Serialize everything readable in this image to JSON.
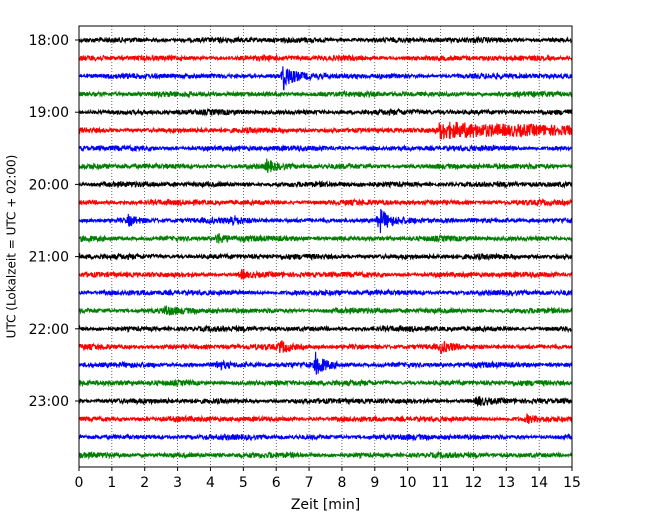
{
  "chart_data": {
    "type": "line",
    "title": "",
    "xlabel": "Zeit  [min]",
    "ylabel": "UTC (Lokalzeit = UTC + 02:00)",
    "xlim": [
      0,
      15
    ],
    "x_ticks": [
      "0",
      "1",
      "2",
      "3",
      "4",
      "5",
      "6",
      "7",
      "8",
      "9",
      "10",
      "11",
      "12",
      "13",
      "14",
      "15"
    ],
    "y_tick_labels": [
      "18:00",
      "19:00",
      "20:00",
      "21:00",
      "22:00",
      "23:00"
    ],
    "grid": "vertical dotted",
    "legend": "none",
    "trace_colors": [
      "#000000",
      "#ff0000",
      "#0000ff",
      "#008000"
    ],
    "traces": [
      {
        "start": "18:00",
        "color": "#000000"
      },
      {
        "start": "18:15",
        "color": "#ff0000"
      },
      {
        "start": "18:30",
        "color": "#0000ff",
        "events": [
          {
            "minute": 6.2,
            "amplitude": 1.0
          }
        ]
      },
      {
        "start": "18:45",
        "color": "#008000"
      },
      {
        "start": "19:00",
        "color": "#000000"
      },
      {
        "start": "19:15",
        "color": "#ff0000",
        "events": [
          {
            "minute": 11.0,
            "amplitude": 0.9,
            "sustained": true
          }
        ]
      },
      {
        "start": "19:30",
        "color": "#0000ff"
      },
      {
        "start": "19:45",
        "color": "#008000",
        "events": [
          {
            "minute": 5.7,
            "amplitude": 0.4
          }
        ]
      },
      {
        "start": "20:00",
        "color": "#000000"
      },
      {
        "start": "20:15",
        "color": "#ff0000"
      },
      {
        "start": "20:30",
        "color": "#0000ff",
        "events": [
          {
            "minute": 9.1,
            "amplitude": 1.0
          },
          {
            "minute": 1.5,
            "amplitude": 0.35
          },
          {
            "minute": 4.6,
            "amplitude": 0.35
          }
        ]
      },
      {
        "start": "20:45",
        "color": "#008000",
        "events": [
          {
            "minute": 4.2,
            "amplitude": 0.35
          }
        ]
      },
      {
        "start": "21:00",
        "color": "#000000"
      },
      {
        "start": "21:15",
        "color": "#ff0000",
        "events": [
          {
            "minute": 4.9,
            "amplitude": 0.3
          }
        ]
      },
      {
        "start": "21:30",
        "color": "#0000ff"
      },
      {
        "start": "21:45",
        "color": "#008000",
        "events": [
          {
            "minute": 2.6,
            "amplitude": 0.3
          }
        ]
      },
      {
        "start": "22:00",
        "color": "#000000"
      },
      {
        "start": "22:15",
        "color": "#ff0000",
        "events": [
          {
            "minute": 6.1,
            "amplitude": 0.4
          },
          {
            "minute": 11.0,
            "amplitude": 0.35
          }
        ]
      },
      {
        "start": "22:30",
        "color": "#0000ff",
        "events": [
          {
            "minute": 7.2,
            "amplitude": 0.75
          },
          {
            "minute": 4.2,
            "amplitude": 0.3
          }
        ]
      },
      {
        "start": "22:45",
        "color": "#008000"
      },
      {
        "start": "23:00",
        "color": "#000000",
        "events": [
          {
            "minute": 12.1,
            "amplitude": 0.35
          }
        ]
      },
      {
        "start": "23:15",
        "color": "#ff0000",
        "events": [
          {
            "minute": 13.6,
            "amplitude": 0.25
          }
        ]
      },
      {
        "start": "23:30",
        "color": "#0000ff"
      },
      {
        "start": "23:45",
        "color": "#008000"
      }
    ]
  }
}
